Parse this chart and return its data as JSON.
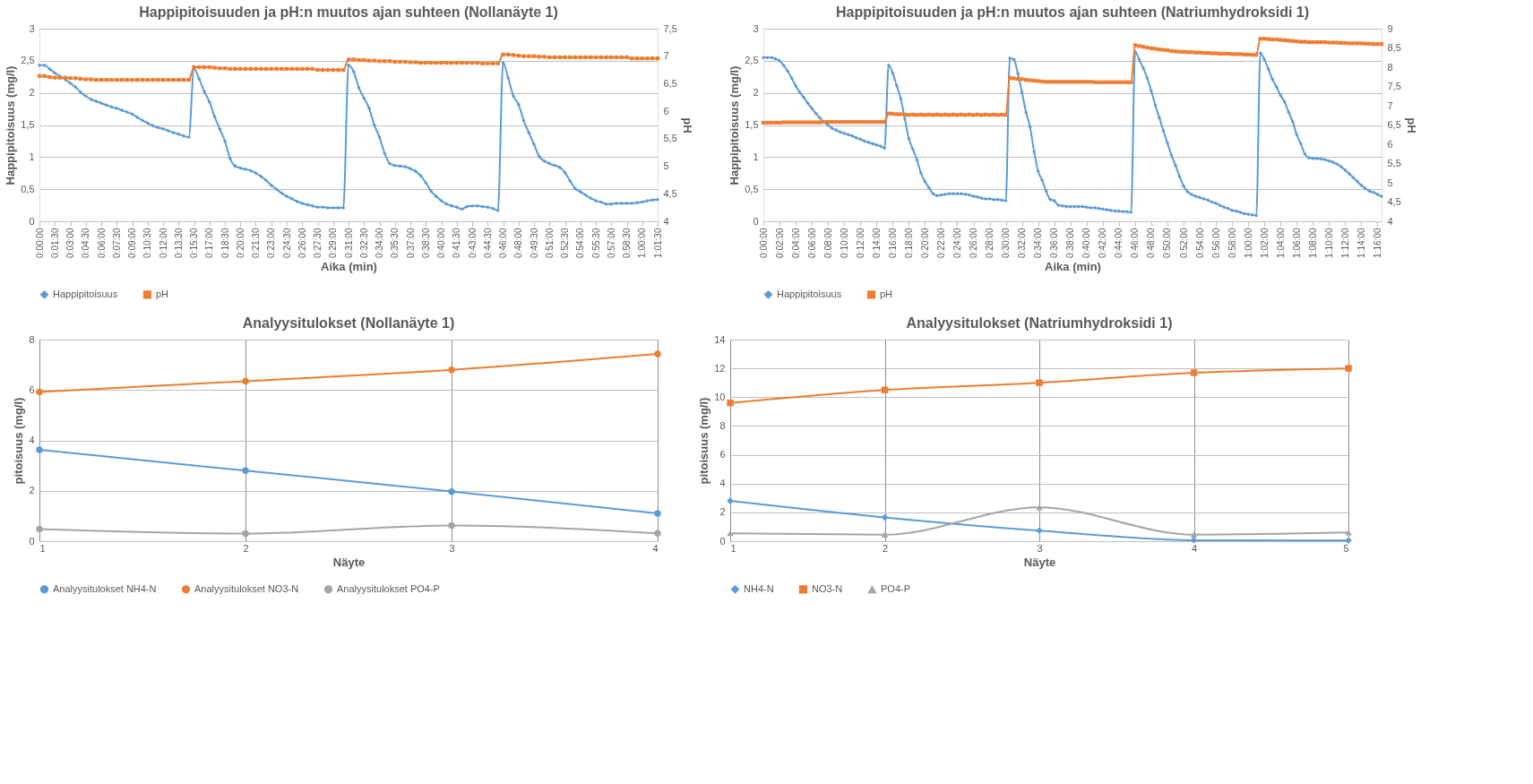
{
  "chart_data": [
    {
      "type": "line",
      "title": "Happipitoisuuden  ja pH:n muutos ajan suhteen (Nollanäyte 1)",
      "xlabel": "Aika (min)",
      "ylabel": "Happipitoisuus (mg/l)",
      "y2label": "pH",
      "categories": [
        "0:00:00",
        null,
        null,
        "0:01:30",
        null,
        null,
        "0:03:00",
        null,
        null,
        "0:04:30",
        null,
        null,
        "0:06:00",
        null,
        null,
        "0:07:30",
        null,
        null,
        "0:09:00",
        null,
        null,
        "0:10:30",
        null,
        null,
        "0:12:00",
        null,
        null,
        "0:13:30",
        null,
        null,
        "0:15:30",
        null,
        null,
        "0:17:00",
        null,
        null,
        "0:18:30",
        null,
        null,
        "0:20:00",
        null,
        null,
        "0:21:30",
        null,
        null,
        "0:23:00",
        null,
        null,
        "0:24:30",
        null,
        null,
        "0:26:00",
        null,
        null,
        "0:27:30",
        null,
        null,
        "0:29:00",
        null,
        null,
        "0:31:00",
        null,
        null,
        "0:32:30",
        null,
        null,
        "0:34:00",
        null,
        null,
        "0:35:30",
        null,
        null,
        "0:37:00",
        null,
        null,
        "0:38:30",
        null,
        null,
        "0:40:00",
        null,
        null,
        "0:41:30",
        null,
        null,
        "0:43:00",
        null,
        null,
        "0:44:30",
        null,
        null,
        "0:46:00",
        null,
        null,
        "0:48:00",
        null,
        null,
        "0:49:30",
        null,
        null,
        "0:51:00",
        null,
        null,
        "0:52:30",
        null,
        null,
        "0:54:00",
        null,
        null,
        "0:55:30",
        null,
        null,
        "0:57:00",
        null,
        null,
        "0:58:30",
        null,
        null,
        "1:00:00",
        null,
        null,
        "1:01:30"
      ],
      "ylim": [
        0,
        3
      ],
      "yticks": [
        0,
        {
          "value": 0.5,
          "label": "0,5"
        },
        1,
        {
          "value": 1.5,
          "label": "1,5"
        },
        2,
        {
          "value": 2.5,
          "label": "2,5"
        },
        3
      ],
      "y2lim": [
        4,
        7.5
      ],
      "y2ticks": [
        4,
        {
          "value": 4.5,
          "label": "4,5"
        },
        5,
        {
          "value": 5.5,
          "label": "5,5"
        },
        6,
        {
          "value": 6.5,
          "label": "6,5"
        },
        7,
        {
          "value": 7.5,
          "label": "7,5"
        }
      ],
      "grid": "y",
      "legend": "bottom",
      "series": [
        {
          "name": "Happipitoisuus",
          "color": "#5b9bd5",
          "marker": "diamond",
          "axis": "y",
          "values": [
            2.43,
            2.43,
            2.37,
            2.31,
            2.26,
            2.21,
            2.15,
            2.09,
            2.01,
            1.95,
            1.9,
            1.87,
            1.84,
            1.81,
            1.78,
            1.76,
            1.73,
            1.7,
            1.67,
            1.62,
            1.57,
            1.53,
            1.49,
            1.46,
            1.44,
            1.41,
            1.38,
            1.36,
            1.33,
            1.31,
            2.38,
            2.22,
            2.02,
            1.86,
            1.63,
            1.44,
            1.25,
            0.98,
            0.86,
            0.83,
            0.81,
            0.79,
            0.75,
            0.7,
            0.64,
            0.56,
            0.5,
            0.44,
            0.39,
            0.35,
            0.31,
            0.28,
            0.26,
            0.24,
            0.22,
            0.22,
            0.21,
            0.21,
            0.21,
            0.21,
            2.43,
            2.33,
            2.08,
            1.92,
            1.76,
            1.5,
            1.31,
            1.06,
            0.9,
            0.87,
            0.86,
            0.85,
            0.82,
            0.78,
            0.71,
            0.6,
            0.47,
            0.39,
            0.32,
            0.27,
            0.24,
            0.22,
            0.19,
            0.23,
            0.24,
            0.24,
            0.23,
            0.22,
            0.2,
            0.17,
            2.47,
            2.23,
            1.95,
            1.82,
            1.57,
            1.38,
            1.2,
            1.01,
            0.94,
            0.9,
            0.87,
            0.84,
            0.76,
            0.63,
            0.51,
            0.46,
            0.41,
            0.36,
            0.32,
            0.3,
            0.27,
            0.27,
            0.28,
            0.28,
            0.28,
            0.28,
            0.29,
            0.3,
            0.32,
            0.33,
            0.34
          ]
        },
        {
          "name": "pH",
          "color": "#ed7d31",
          "marker": "square",
          "axis": "y2",
          "values": [
            6.64,
            6.64,
            6.62,
            6.61,
            6.61,
            6.61,
            6.6,
            6.6,
            6.59,
            6.58,
            6.58,
            6.57,
            6.57,
            6.57,
            6.57,
            6.57,
            6.57,
            6.57,
            6.57,
            6.57,
            6.57,
            6.57,
            6.57,
            6.57,
            6.57,
            6.57,
            6.57,
            6.57,
            6.57,
            6.57,
            6.8,
            6.8,
            6.8,
            6.8,
            6.79,
            6.78,
            6.78,
            6.77,
            6.77,
            6.77,
            6.77,
            6.77,
            6.77,
            6.77,
            6.77,
            6.77,
            6.77,
            6.77,
            6.77,
            6.77,
            6.77,
            6.77,
            6.77,
            6.77,
            6.75,
            6.75,
            6.75,
            6.75,
            6.75,
            6.75,
            6.94,
            6.94,
            6.93,
            6.93,
            6.92,
            6.92,
            6.91,
            6.91,
            6.91,
            6.9,
            6.9,
            6.9,
            6.89,
            6.89,
            6.88,
            6.88,
            6.88,
            6.88,
            6.88,
            6.88,
            6.88,
            6.88,
            6.88,
            6.88,
            6.88,
            6.88,
            6.87,
            6.87,
            6.87,
            6.87,
            7.03,
            7.03,
            7.02,
            7.01,
            7.0,
            7.0,
            7.0,
            6.99,
            6.99,
            6.98,
            6.98,
            6.98,
            6.98,
            6.98,
            6.98,
            6.98,
            6.98,
            6.98,
            6.98,
            6.98,
            6.98,
            6.98,
            6.98,
            6.98,
            6.98,
            6.96,
            6.96,
            6.96,
            6.96,
            6.96,
            6.96
          ]
        }
      ]
    },
    {
      "type": "line",
      "title": "Happipitoisuuden  ja pH:n muutos ajan suhteen (Natriumhydroksidi 1)",
      "xlabel": "Aika (min)",
      "ylabel": "Happipitoisuus (mg/l)",
      "y2label": "pH",
      "categories": [
        "0:00:00",
        null,
        null,
        null,
        "0:02:00",
        null,
        null,
        null,
        "0:04:00",
        null,
        null,
        null,
        "0:06:00",
        null,
        null,
        null,
        "0:08:00",
        null,
        null,
        null,
        "0:10:00",
        null,
        null,
        null,
        "0:12:00",
        null,
        null,
        null,
        "0:14:00",
        null,
        null,
        null,
        "0:16:00",
        null,
        null,
        null,
        "0:18:00",
        null,
        null,
        null,
        "0:20:00",
        null,
        null,
        null,
        "0:22:00",
        null,
        null,
        null,
        "0:24:00",
        null,
        null,
        null,
        "0:26:00",
        null,
        null,
        null,
        "0:28:00",
        null,
        null,
        null,
        "0:30:00",
        null,
        null,
        null,
        "0:32:00",
        null,
        null,
        null,
        "0:34:00",
        null,
        null,
        null,
        "0:36:00",
        null,
        null,
        null,
        "0:38:00",
        null,
        null,
        null,
        "0:40:00",
        null,
        null,
        null,
        "0:42:00",
        null,
        null,
        null,
        "0:44:00",
        null,
        null,
        null,
        "0:46:00",
        null,
        null,
        null,
        "0:48:00",
        null,
        null,
        null,
        "0:50:00",
        null,
        null,
        null,
        "0:52:00",
        null,
        null,
        null,
        "0:54:00",
        null,
        null,
        null,
        "0:56:00",
        null,
        null,
        null,
        "0:58:00",
        null,
        null,
        null,
        "1:00:00",
        null,
        null,
        null,
        "1:02:00",
        null,
        null,
        null,
        "1:04:00",
        null,
        null,
        null,
        "1:06:00",
        null,
        null,
        null,
        "1:08:00",
        null,
        null,
        null,
        "1:10:00",
        null,
        null,
        null,
        "1:12:00",
        null,
        null,
        null,
        "1:14:00",
        null,
        null,
        null,
        "1:16:00",
        null
      ],
      "ylim": [
        0,
        3
      ],
      "yticks": [
        0,
        {
          "value": 0.5,
          "label": "0,5"
        },
        1,
        {
          "value": 1.5,
          "label": "1,5"
        },
        2,
        {
          "value": 2.5,
          "label": "2,5"
        },
        3
      ],
      "y2lim": [
        4,
        9
      ],
      "y2ticks": [
        4,
        {
          "value": 4.5,
          "label": "4,5"
        },
        5,
        {
          "value": 5.5,
          "label": "5,5"
        },
        6,
        {
          "value": 6.5,
          "label": "6,5"
        },
        7,
        {
          "value": 7.5,
          "label": "7,5"
        },
        8,
        {
          "value": 8.5,
          "label": "8,5"
        },
        9
      ],
      "grid": "y",
      "legend": "bottom",
      "series": [
        {
          "name": "Happipitoisuus",
          "color": "#5b9bd5",
          "marker": "diamond",
          "axis": "y",
          "values": [
            2.55,
            2.55,
            2.55,
            2.53,
            2.5,
            2.43,
            2.34,
            2.23,
            2.11,
            2.01,
            1.93,
            1.84,
            1.76,
            1.68,
            1.61,
            1.55,
            1.5,
            1.45,
            1.42,
            1.39,
            1.37,
            1.35,
            1.33,
            1.3,
            1.28,
            1.25,
            1.23,
            1.21,
            1.19,
            1.17,
            1.14,
            2.43,
            2.31,
            2.11,
            1.91,
            1.6,
            1.29,
            1.12,
            0.96,
            0.75,
            0.62,
            0.52,
            0.43,
            0.4,
            0.41,
            0.42,
            0.43,
            0.43,
            0.43,
            0.43,
            0.42,
            0.41,
            0.39,
            0.38,
            0.36,
            0.35,
            0.35,
            0.34,
            0.34,
            0.33,
            0.32,
            2.54,
            2.52,
            2.3,
            2.01,
            1.7,
            1.47,
            1.09,
            0.78,
            0.64,
            0.47,
            0.34,
            0.32,
            0.25,
            0.24,
            0.23,
            0.23,
            0.23,
            0.23,
            0.23,
            0.22,
            0.21,
            0.21,
            0.2,
            0.19,
            0.18,
            0.17,
            0.16,
            0.16,
            0.15,
            0.15,
            0.14,
            2.64,
            2.52,
            2.39,
            2.23,
            2.03,
            1.81,
            1.61,
            1.41,
            1.22,
            1.03,
            0.87,
            0.7,
            0.55,
            0.46,
            0.42,
            0.39,
            0.37,
            0.35,
            0.33,
            0.3,
            0.28,
            0.25,
            0.22,
            0.2,
            0.17,
            0.16,
            0.14,
            0.12,
            0.11,
            0.1,
            0.09,
            2.62,
            2.52,
            2.37,
            2.21,
            2.09,
            1.96,
            1.86,
            1.7,
            1.55,
            1.35,
            1.21,
            1.05,
            0.99,
            0.98,
            0.98,
            0.97,
            0.96,
            0.94,
            0.92,
            0.89,
            0.85,
            0.8,
            0.74,
            0.68,
            0.62,
            0.56,
            0.51,
            0.47,
            0.45,
            0.42,
            0.39
          ]
        },
        {
          "name": "pH",
          "color": "#ed7d31",
          "marker": "square",
          "axis": "y2",
          "values": [
            6.56,
            6.56,
            6.56,
            6.56,
            6.56,
            6.57,
            6.57,
            6.57,
            6.57,
            6.57,
            6.57,
            6.57,
            6.57,
            6.57,
            6.57,
            6.58,
            6.58,
            6.58,
            6.58,
            6.58,
            6.58,
            6.58,
            6.58,
            6.58,
            6.58,
            6.58,
            6.58,
            6.58,
            6.58,
            6.58,
            6.58,
            6.8,
            6.79,
            6.78,
            6.78,
            6.77,
            6.76,
            6.77,
            6.76,
            6.77,
            6.76,
            6.77,
            6.76,
            6.77,
            6.76,
            6.77,
            6.76,
            6.77,
            6.76,
            6.77,
            6.76,
            6.77,
            6.76,
            6.77,
            6.76,
            6.77,
            6.76,
            6.77,
            6.76,
            6.77,
            6.76,
            7.72,
            7.71,
            7.7,
            7.69,
            7.67,
            7.66,
            7.65,
            7.64,
            7.63,
            7.62,
            7.62,
            7.62,
            7.62,
            7.62,
            7.62,
            7.62,
            7.62,
            7.62,
            7.62,
            7.62,
            7.62,
            7.61,
            7.61,
            7.61,
            7.61,
            7.61,
            7.61,
            7.61,
            7.61,
            7.61,
            7.61,
            8.57,
            8.55,
            8.53,
            8.51,
            8.49,
            8.48,
            8.46,
            8.45,
            8.44,
            8.42,
            8.41,
            8.4,
            8.4,
            8.39,
            8.39,
            8.38,
            8.38,
            8.37,
            8.37,
            8.36,
            8.36,
            8.35,
            8.35,
            8.35,
            8.34,
            8.34,
            8.34,
            8.33,
            8.33,
            8.32,
            8.32,
            8.74,
            8.74,
            8.73,
            8.72,
            8.72,
            8.71,
            8.7,
            8.69,
            8.68,
            8.67,
            8.66,
            8.66,
            8.65,
            8.65,
            8.65,
            8.65,
            8.65,
            8.64,
            8.64,
            8.64,
            8.63,
            8.63,
            8.62,
            8.62,
            8.62,
            8.62,
            8.61,
            8.61,
            8.6,
            8.6,
            8.6
          ]
        }
      ]
    },
    {
      "type": "line",
      "title": "Analyysitulokset (Nollanäyte 1)",
      "xlabel": "Näyte",
      "ylabel": "pitoisuus (mg/l)",
      "x": [
        1,
        2,
        3,
        4
      ],
      "xlim": [
        1,
        4
      ],
      "xticks": [
        1,
        2,
        3,
        4
      ],
      "ylim": [
        0,
        8
      ],
      "yticks": [
        0,
        2,
        4,
        6,
        8
      ],
      "grid": true,
      "legend": "bottom",
      "series": [
        {
          "name": "Analyysitulokset NH4-N",
          "color": "#5b9bd5",
          "marker": "circle",
          "values": [
            3.63,
            2.8,
            1.97,
            1.1
          ]
        },
        {
          "name": "Analyysitulokset NO3-N",
          "color": "#ed7d31",
          "marker": "circle",
          "values": [
            5.92,
            6.35,
            6.8,
            7.43
          ]
        },
        {
          "name": "Analyysitulokset PO4-P",
          "color": "#a5a5a5",
          "marker": "circle",
          "values": [
            0.48,
            0.3,
            0.62,
            0.31
          ]
        }
      ]
    },
    {
      "type": "line",
      "title": "Analyysitulokset (Natriumhydroksidi 1)",
      "xlabel": "Näyte",
      "ylabel": "pitoisuus (mg/l)",
      "x": [
        1,
        2,
        3,
        4,
        5
      ],
      "xlim": [
        1,
        5
      ],
      "xticks": [
        1,
        2,
        3,
        4,
        5
      ],
      "ylim": [
        0,
        14
      ],
      "yticks": [
        0,
        2,
        4,
        6,
        8,
        10,
        12,
        14
      ],
      "grid": true,
      "legend": "bottom",
      "series": [
        {
          "name": "NH4-N",
          "color": "#5b9bd5",
          "marker": "diamond",
          "values": [
            2.8,
            1.65,
            0.73,
            0.07,
            0.05
          ]
        },
        {
          "name": "NO3-N",
          "color": "#ed7d31",
          "marker": "square",
          "values": [
            9.6,
            10.5,
            11.0,
            11.7,
            12.0
          ]
        },
        {
          "name": "PO4-P",
          "color": "#a5a5a5",
          "marker": "triangle",
          "values": [
            0.55,
            0.45,
            2.35,
            0.45,
            0.6
          ]
        }
      ]
    }
  ]
}
